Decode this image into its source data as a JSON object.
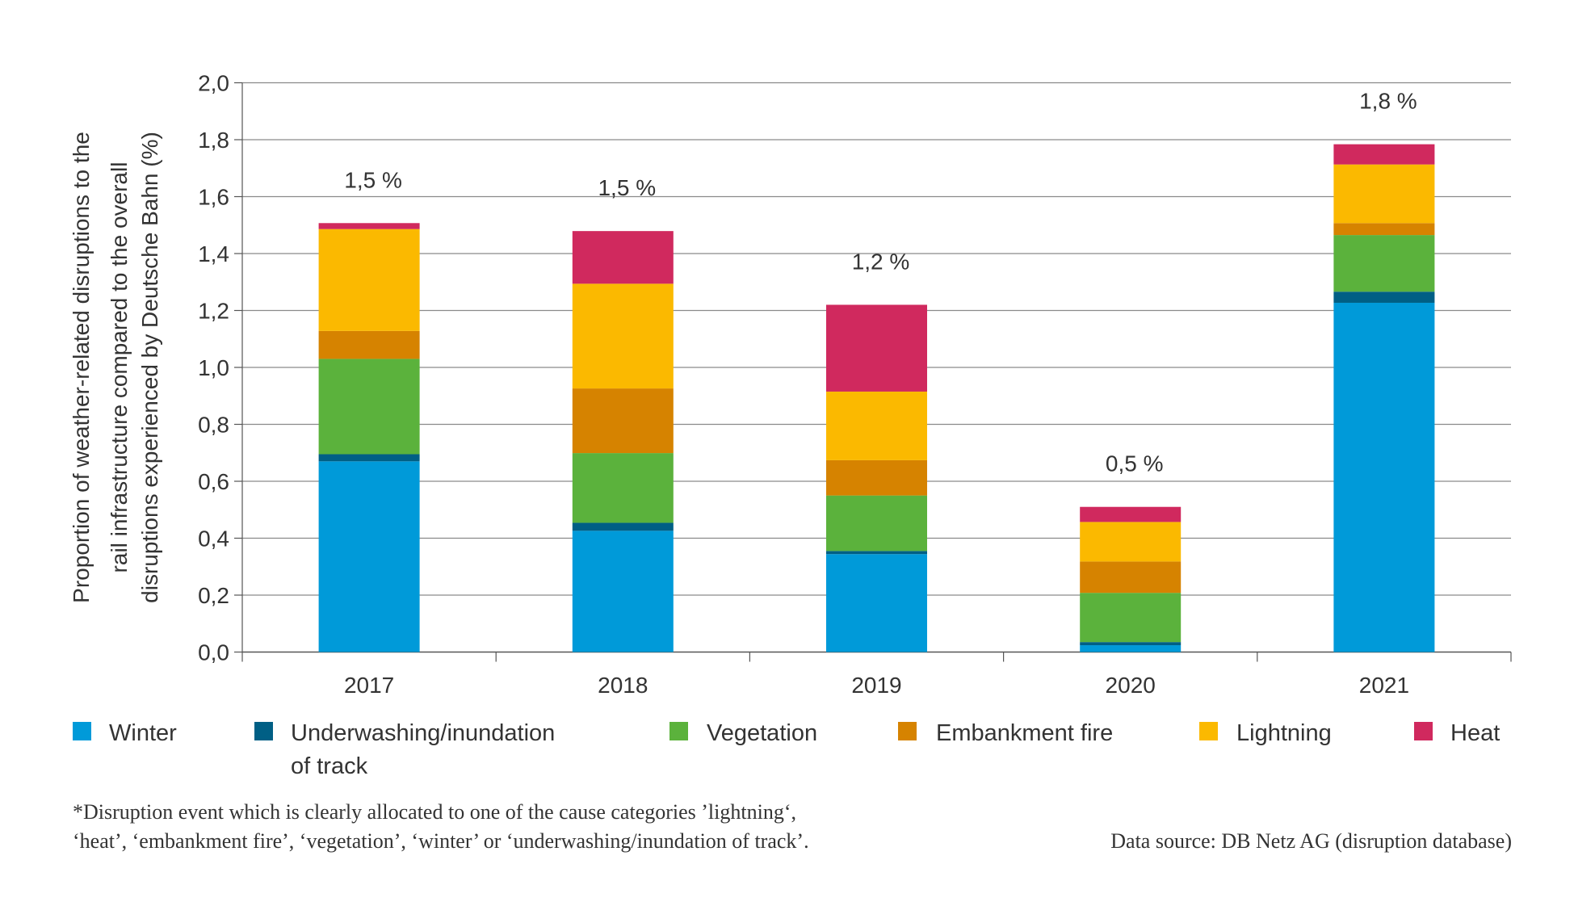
{
  "chart_data": {
    "type": "bar",
    "stacked": true,
    "title": "",
    "xlabel": "",
    "ylabel": "Proportion of weather-related disruptions to the rail infrastructure compared to the overall disruptions experienced by Deutsche Bahn (%)",
    "ylabel_lines": [
      "Proportion of weather-related disruptions to the",
      "rail infrastructure compared to the overall",
      "disruptions experienced by Deutsche Bahn (%)"
    ],
    "ylim": [
      0,
      2.0
    ],
    "yticks": [
      "0,0",
      "0,2",
      "0,4",
      "0,6",
      "0,8",
      "1,0",
      "1,2",
      "1,4",
      "1,6",
      "1,8",
      "2,0"
    ],
    "grid": true,
    "legend_placement": "bottom",
    "categories": [
      "2017",
      "2018",
      "2019",
      "2020",
      "2021"
    ],
    "totals_labels": [
      "1,5 %",
      "1,5 %",
      "1,2 %",
      "0,5 %",
      "1,8 %"
    ],
    "series": [
      {
        "name": "Winter",
        "color": "#009ad9",
        "values": [
          0.67,
          0.426,
          0.344,
          0.024,
          1.227
        ]
      },
      {
        "name": "Underwashing/inundation of track",
        "legend_lines": [
          "Underwashing/inundation",
          "of track"
        ],
        "color": "#005f85",
        "values": [
          0.025,
          0.028,
          0.011,
          0.011,
          0.039
        ]
      },
      {
        "name": "Vegetation",
        "color": "#5bb23c",
        "values": [
          0.335,
          0.245,
          0.195,
          0.173,
          0.199
        ]
      },
      {
        "name": "Embankment fire",
        "color": "#d68300",
        "values": [
          0.098,
          0.227,
          0.124,
          0.11,
          0.042
        ]
      },
      {
        "name": "Lightning",
        "color": "#fbb900",
        "values": [
          0.358,
          0.368,
          0.241,
          0.139,
          0.206
        ]
      },
      {
        "name": "Heat",
        "color": "#d0295e",
        "values": [
          0.021,
          0.185,
          0.305,
          0.053,
          0.071
        ]
      }
    ],
    "footnote_lines": [
      "*Disruption event which is clearly allocated to one of the cause categories ’lightning‘,",
      "‘heat’, ‘embankment fire’, ‘vegetation’, ‘winter’ or ‘underwashing/inundation of track’."
    ],
    "source": "Data source: DB Netz AG  (disruption database)"
  }
}
